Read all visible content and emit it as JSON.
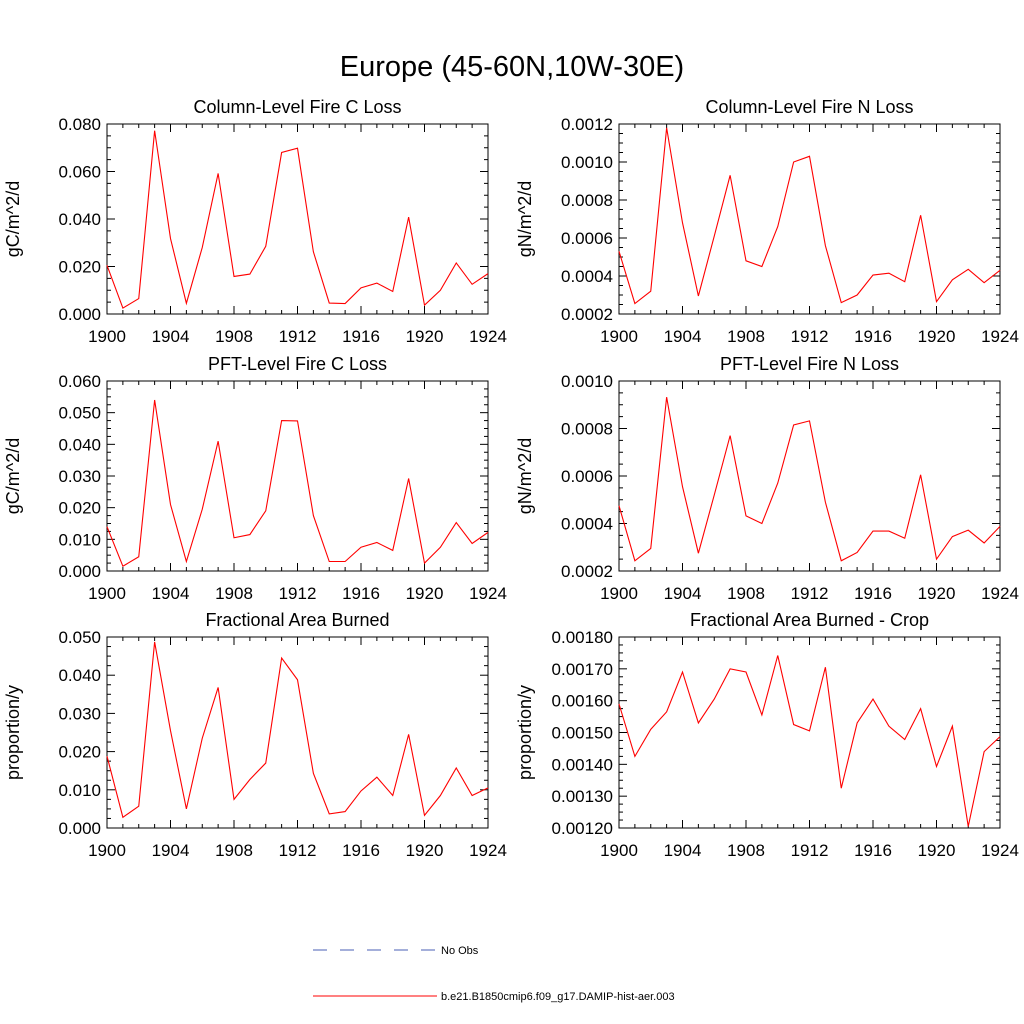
{
  "page_title": "Europe (45-60N,10W-30E)",
  "legend": [
    {
      "label": "No Obs",
      "color": "#4a5fb5",
      "style": "dashed"
    },
    {
      "label": "b.e21.B1850cmip6.f09_g17.DAMIP-hist-aer.003",
      "color": "#ff0000",
      "style": "solid"
    }
  ],
  "chart_data": [
    {
      "type": "line",
      "title": "Column-Level Fire C Loss",
      "ylabel": "gC/m^2/d",
      "xlim": [
        1900,
        1924
      ],
      "ylim": [
        0.0,
        0.08
      ],
      "xticks": [
        "1900",
        "1904",
        "1908",
        "1912",
        "1916",
        "1920",
        "1924"
      ],
      "yticks": [
        "0.000",
        "0.020",
        "0.040",
        "0.060",
        "0.080"
      ],
      "x": [
        1900,
        1901,
        1902,
        1903,
        1904,
        1905,
        1906,
        1907,
        1908,
        1909,
        1910,
        1911,
        1912,
        1913,
        1914,
        1915,
        1916,
        1917,
        1918,
        1919,
        1920,
        1921,
        1922,
        1923,
        1924
      ],
      "series": [
        {
          "color": "#ff0000",
          "values": [
            0.0205,
            0.0025,
            0.0065,
            0.0772,
            0.0318,
            0.0045,
            0.028,
            0.0592,
            0.0158,
            0.0168,
            0.0285,
            0.068,
            0.0698,
            0.0262,
            0.0046,
            0.0044,
            0.011,
            0.013,
            0.0095,
            0.0408,
            0.0037,
            0.01,
            0.0215,
            0.0125,
            0.017
          ]
        }
      ]
    },
    {
      "type": "line",
      "title": "Column-Level Fire N Loss",
      "ylabel": "gN/m^2/d",
      "xlim": [
        1900,
        1924
      ],
      "ylim": [
        0.0002,
        0.0012
      ],
      "xticks": [
        "1900",
        "1904",
        "1908",
        "1912",
        "1916",
        "1920",
        "1924"
      ],
      "yticks": [
        "0.0002",
        "0.0004",
        "0.0006",
        "0.0008",
        "0.0010",
        "0.0012"
      ],
      "x": [
        1900,
        1901,
        1902,
        1903,
        1904,
        1905,
        1906,
        1907,
        1908,
        1909,
        1910,
        1911,
        1912,
        1913,
        1914,
        1915,
        1916,
        1917,
        1918,
        1919,
        1920,
        1921,
        1922,
        1923,
        1924
      ],
      "series": [
        {
          "color": "#ff0000",
          "values": [
            0.00053,
            0.000255,
            0.00032,
            0.00118,
            0.00068,
            0.000295,
            0.00061,
            0.00093,
            0.00048,
            0.00045,
            0.00066,
            0.001,
            0.00103,
            0.00056,
            0.00026,
            0.0003,
            0.000405,
            0.000415,
            0.00037,
            0.00072,
            0.000265,
            0.00038,
            0.000435,
            0.000365,
            0.00043
          ]
        }
      ]
    },
    {
      "type": "line",
      "title": "PFT-Level Fire C Loss",
      "ylabel": "gC/m^2/d",
      "xlim": [
        1900,
        1924
      ],
      "ylim": [
        0.0,
        0.06
      ],
      "xticks": [
        "1900",
        "1904",
        "1908",
        "1912",
        "1916",
        "1920",
        "1924"
      ],
      "yticks": [
        "0.000",
        "0.010",
        "0.020",
        "0.030",
        "0.040",
        "0.050",
        "0.060"
      ],
      "x": [
        1900,
        1901,
        1902,
        1903,
        1904,
        1905,
        1906,
        1907,
        1908,
        1909,
        1910,
        1911,
        1912,
        1913,
        1914,
        1915,
        1916,
        1917,
        1918,
        1919,
        1920,
        1921,
        1922,
        1923,
        1924
      ],
      "series": [
        {
          "color": "#ff0000",
          "values": [
            0.014,
            0.0015,
            0.0045,
            0.054,
            0.021,
            0.003,
            0.0195,
            0.041,
            0.0105,
            0.0115,
            0.019,
            0.0475,
            0.0474,
            0.0175,
            0.003,
            0.003,
            0.0075,
            0.009,
            0.0065,
            0.0292,
            0.0025,
            0.0075,
            0.0153,
            0.0087,
            0.0122
          ]
        }
      ]
    },
    {
      "type": "line",
      "title": "PFT-Level Fire N Loss",
      "ylabel": "gN/m^2/d",
      "xlim": [
        1900,
        1924
      ],
      "ylim": [
        0.0002,
        0.001
      ],
      "xticks": [
        "1900",
        "1904",
        "1908",
        "1912",
        "1916",
        "1920",
        "1924"
      ],
      "yticks": [
        "0.0002",
        "0.0004",
        "0.0006",
        "0.0008",
        "0.0010"
      ],
      "x": [
        1900,
        1901,
        1902,
        1903,
        1904,
        1905,
        1906,
        1907,
        1908,
        1909,
        1910,
        1911,
        1912,
        1913,
        1914,
        1915,
        1916,
        1917,
        1918,
        1919,
        1920,
        1921,
        1922,
        1923,
        1924
      ],
      "series": [
        {
          "color": "#ff0000",
          "values": [
            0.000475,
            0.000243,
            0.000295,
            0.000932,
            0.000555,
            0.000275,
            0.00052,
            0.00077,
            0.000432,
            0.0004,
            0.00057,
            0.000815,
            0.000832,
            0.00049,
            0.000243,
            0.000278,
            0.000368,
            0.000368,
            0.000338,
            0.000605,
            0.00025,
            0.000345,
            0.000372,
            0.000318,
            0.000388
          ]
        }
      ]
    },
    {
      "type": "line",
      "title": "Fractional Area Burned",
      "ylabel": "proportion/y",
      "xlim": [
        1900,
        1924
      ],
      "ylim": [
        0.0,
        0.05
      ],
      "xticks": [
        "1900",
        "1904",
        "1908",
        "1912",
        "1916",
        "1920",
        "1924"
      ],
      "yticks": [
        "0.000",
        "0.010",
        "0.020",
        "0.030",
        "0.040",
        "0.050"
      ],
      "x": [
        1900,
        1901,
        1902,
        1903,
        1904,
        1905,
        1906,
        1907,
        1908,
        1909,
        1910,
        1911,
        1912,
        1913,
        1914,
        1915,
        1916,
        1917,
        1918,
        1919,
        1920,
        1921,
        1922,
        1923,
        1924
      ],
      "series": [
        {
          "color": "#ff0000",
          "values": [
            0.0188,
            0.0028,
            0.0057,
            0.0487,
            0.0255,
            0.005,
            0.0235,
            0.0368,
            0.0075,
            0.0127,
            0.017,
            0.0445,
            0.0388,
            0.0143,
            0.0037,
            0.0043,
            0.0097,
            0.0133,
            0.0085,
            0.0245,
            0.0033,
            0.0085,
            0.0157,
            0.0085,
            0.0105
          ]
        }
      ]
    },
    {
      "type": "line",
      "title": "Fractional Area Burned - Crop",
      "ylabel": "proportion/y",
      "xlim": [
        1900,
        1924
      ],
      "ylim": [
        0.0012,
        0.0018
      ],
      "xticks": [
        "1900",
        "1904",
        "1908",
        "1912",
        "1916",
        "1920",
        "1924"
      ],
      "yticks": [
        "0.00120",
        "0.00130",
        "0.00140",
        "0.00150",
        "0.00160",
        "0.00170",
        "0.00180"
      ],
      "x": [
        1900,
        1901,
        1902,
        1903,
        1904,
        1905,
        1906,
        1907,
        1908,
        1909,
        1910,
        1911,
        1912,
        1913,
        1914,
        1915,
        1916,
        1917,
        1918,
        1919,
        1920,
        1921,
        1922,
        1923,
        1924
      ],
      "series": [
        {
          "color": "#ff0000",
          "values": [
            0.00159,
            0.001425,
            0.00151,
            0.001565,
            0.00169,
            0.00153,
            0.001605,
            0.0017,
            0.00169,
            0.001555,
            0.001742,
            0.001525,
            0.001505,
            0.001705,
            0.001325,
            0.00153,
            0.001605,
            0.00152,
            0.001478,
            0.001575,
            0.001393,
            0.00152,
            0.001205,
            0.00144,
            0.001487
          ]
        }
      ]
    }
  ]
}
